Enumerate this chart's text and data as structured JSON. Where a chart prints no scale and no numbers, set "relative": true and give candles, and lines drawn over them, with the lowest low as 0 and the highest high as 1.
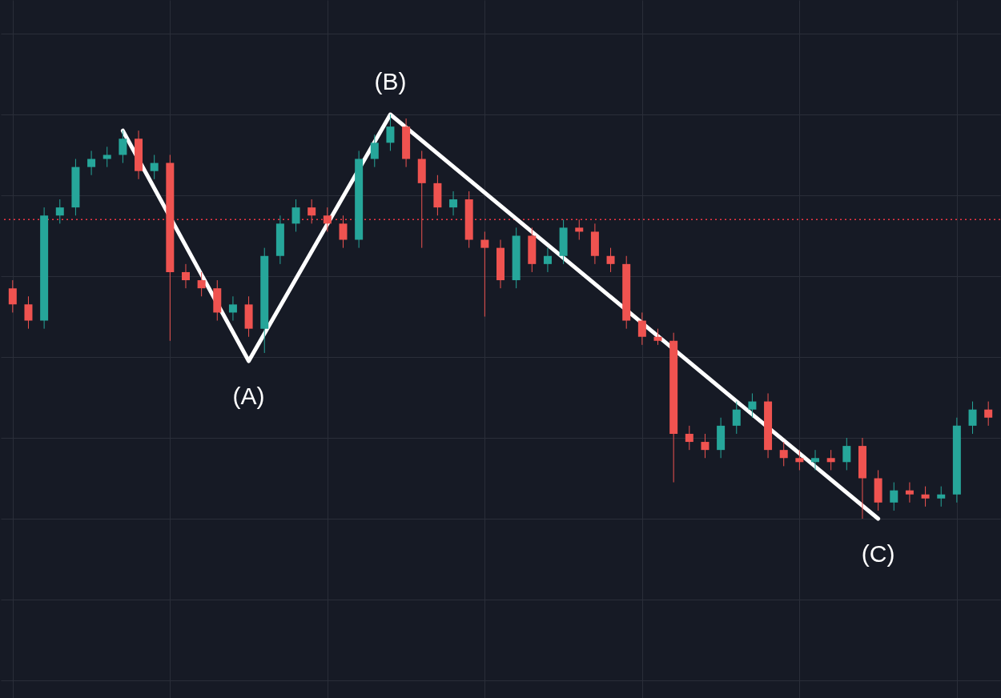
{
  "chart_data": {
    "type": "candlestick",
    "relative": true,
    "grid": true,
    "colors": [
      "#ef5350",
      "#ef5350",
      "#26a69a",
      "#26a69a",
      "#26a69a",
      "#26a69a",
      "#26a69a",
      "#26a69a",
      "#ef5350",
      "#26a69a",
      "#ef5350",
      "#ef5350",
      "#ef5350",
      "#ef5350",
      "#26a69a",
      "#ef5350",
      "#26a69a",
      "#26a69a",
      "#26a69a",
      "#ef5350",
      "#ef5350",
      "#ef5350",
      "#26a69a",
      "#26a69a",
      "#26a69a",
      "#ef5350",
      "#ef5350",
      "#ef5350",
      "#26a69a",
      "#ef5350",
      "#ef5350",
      "#ef5350",
      "#26a69a",
      "#ef5350",
      "#26a69a",
      "#26a69a",
      "#ef5350",
      "#ef5350",
      "#ef5350",
      "#ef5350",
      "#ef5350",
      "#ef5350",
      "#ef5350",
      "#ef5350",
      "#ef5350",
      "#26a69a",
      "#26a69a",
      "#26a69a",
      "#ef5350",
      "#ef5350",
      "#ef5350",
      "#26a69a",
      "#ef5350",
      "#26a69a",
      "#ef5350",
      "#ef5350",
      "#26a69a",
      "#ef5350",
      "#ef5350",
      "#26a69a",
      "#26a69a",
      "#26a69a",
      "#ef5350"
    ],
    "categories": [
      null,
      null,
      null,
      null,
      null,
      null,
      null,
      null,
      null,
      null,
      null,
      null,
      null,
      null,
      null,
      null,
      null,
      null,
      null,
      null,
      null,
      null,
      null,
      null,
      null,
      null,
      null,
      null,
      null,
      null,
      null,
      null,
      null,
      null,
      null,
      null,
      null,
      null,
      null,
      null,
      null,
      null,
      null,
      null,
      null,
      null,
      null,
      null,
      null,
      null,
      null,
      null,
      null,
      null,
      null,
      null,
      null,
      null,
      null,
      null,
      null,
      null,
      null
    ],
    "ohlc": [
      [
        0.57,
        0.59,
        0.51,
        0.53
      ],
      [
        0.53,
        0.55,
        0.47,
        0.49
      ],
      [
        0.49,
        0.77,
        0.47,
        0.75
      ],
      [
        0.75,
        0.79,
        0.73,
        0.77
      ],
      [
        0.77,
        0.89,
        0.75,
        0.87
      ],
      [
        0.87,
        0.91,
        0.85,
        0.89
      ],
      [
        0.89,
        0.92,
        0.87,
        0.9
      ],
      [
        0.9,
        0.96,
        0.88,
        0.94
      ],
      [
        0.94,
        0.96,
        0.84,
        0.86
      ],
      [
        0.86,
        0.9,
        0.84,
        0.88
      ],
      [
        0.88,
        0.9,
        0.44,
        0.61
      ],
      [
        0.61,
        0.63,
        0.57,
        0.59
      ],
      [
        0.59,
        0.61,
        0.55,
        0.57
      ],
      [
        0.57,
        0.59,
        0.49,
        0.51
      ],
      [
        0.51,
        0.55,
        0.49,
        0.53
      ],
      [
        0.53,
        0.55,
        0.45,
        0.47
      ],
      [
        0.47,
        0.67,
        0.41,
        0.65
      ],
      [
        0.65,
        0.75,
        0.63,
        0.73
      ],
      [
        0.73,
        0.79,
        0.71,
        0.77
      ],
      [
        0.77,
        0.79,
        0.73,
        0.75
      ],
      [
        0.75,
        0.77,
        0.71,
        0.73
      ],
      [
        0.73,
        0.75,
        0.67,
        0.69
      ],
      [
        0.69,
        0.91,
        0.67,
        0.89
      ],
      [
        0.89,
        0.95,
        0.87,
        0.93
      ],
      [
        0.93,
        1.0,
        0.91,
        0.97
      ],
      [
        0.97,
        0.99,
        0.87,
        0.89
      ],
      [
        0.89,
        0.91,
        0.67,
        0.83
      ],
      [
        0.83,
        0.85,
        0.75,
        0.77
      ],
      [
        0.77,
        0.81,
        0.75,
        0.79
      ],
      [
        0.79,
        0.81,
        0.67,
        0.69
      ],
      [
        0.69,
        0.71,
        0.5,
        0.67
      ],
      [
        0.67,
        0.69,
        0.57,
        0.59
      ],
      [
        0.59,
        0.72,
        0.57,
        0.7
      ],
      [
        0.7,
        0.72,
        0.61,
        0.63
      ],
      [
        0.63,
        0.67,
        0.61,
        0.65
      ],
      [
        0.65,
        0.74,
        0.63,
        0.72
      ],
      [
        0.72,
        0.74,
        0.69,
        0.71
      ],
      [
        0.71,
        0.73,
        0.63,
        0.65
      ],
      [
        0.65,
        0.67,
        0.61,
        0.63
      ],
      [
        0.63,
        0.65,
        0.47,
        0.49
      ],
      [
        0.49,
        0.51,
        0.43,
        0.45
      ],
      [
        0.45,
        0.47,
        0.43,
        0.44
      ],
      [
        0.44,
        0.46,
        0.09,
        0.21
      ],
      [
        0.21,
        0.23,
        0.17,
        0.19
      ],
      [
        0.19,
        0.21,
        0.15,
        0.17
      ],
      [
        0.17,
        0.25,
        0.15,
        0.23
      ],
      [
        0.23,
        0.29,
        0.21,
        0.27
      ],
      [
        0.27,
        0.31,
        0.25,
        0.29
      ],
      [
        0.29,
        0.31,
        0.15,
        0.17
      ],
      [
        0.17,
        0.19,
        0.13,
        0.15
      ],
      [
        0.15,
        0.17,
        0.12,
        0.14
      ],
      [
        0.14,
        0.17,
        0.12,
        0.15
      ],
      [
        0.15,
        0.17,
        0.12,
        0.14
      ],
      [
        0.14,
        0.2,
        0.12,
        0.18
      ],
      [
        0.18,
        0.2,
        0.0,
        0.1
      ],
      [
        0.1,
        0.12,
        0.02,
        0.04
      ],
      [
        0.04,
        0.09,
        0.02,
        0.07
      ],
      [
        0.07,
        0.09,
        0.04,
        0.06
      ],
      [
        0.06,
        0.08,
        0.03,
        0.05
      ],
      [
        0.05,
        0.08,
        0.03,
        0.06
      ],
      [
        0.06,
        0.25,
        0.04,
        0.23
      ],
      [
        0.23,
        0.29,
        0.21,
        0.27
      ],
      [
        0.27,
        0.29,
        0.23,
        0.25
      ]
    ],
    "series": [
      {
        "type": "line",
        "color": "#ffffff",
        "values": [
          null,
          null,
          null,
          null,
          null,
          null,
          null,
          0.96,
          null,
          null,
          null,
          null,
          null,
          null,
          null,
          0.39,
          null,
          null,
          null,
          null,
          null,
          null,
          null,
          null,
          1.0,
          null,
          null,
          null,
          null,
          null,
          null,
          null,
          null,
          null,
          null,
          null,
          null,
          null,
          null,
          null,
          null,
          null,
          null,
          null,
          null,
          null,
          null,
          null,
          null,
          null,
          null,
          null,
          null,
          null,
          null,
          0.0,
          null,
          null,
          null,
          null,
          null,
          null,
          null
        ]
      }
    ],
    "annotations": [
      "(A)",
      "(B)",
      "(C)"
    ],
    "ref_lines": [
      {
        "axis": "y",
        "value": 0.74,
        "color": "#f23645",
        "line_style": "dotted"
      }
    ]
  }
}
